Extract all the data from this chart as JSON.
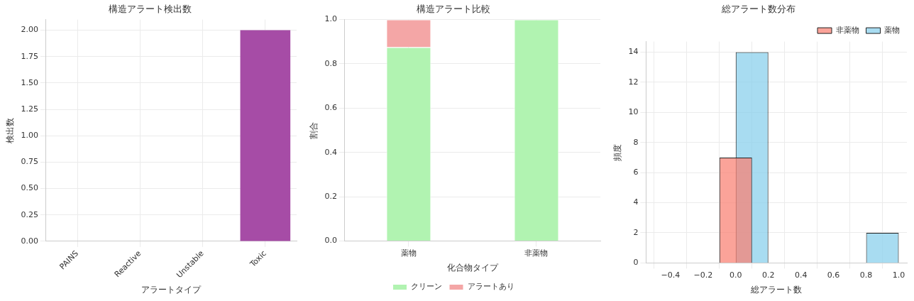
{
  "chart_data": [
    {
      "type": "bar",
      "title": "構造アラート検出数",
      "xlabel": "アラートタイプ",
      "ylabel": "検出数",
      "categories": [
        "PAINS",
        "Reactive",
        "Unstable",
        "Toxic"
      ],
      "values": [
        0,
        0,
        0,
        2
      ],
      "color": "#a64ca6",
      "ylim": [
        0,
        2.1
      ],
      "yticks": [
        {
          "value": 0,
          "label": "0.00"
        },
        {
          "value": 0.25,
          "label": "0.25"
        },
        {
          "value": 0.5,
          "label": "0.50"
        },
        {
          "value": 0.75,
          "label": "0.75"
        },
        {
          "value": 1,
          "label": "1.00"
        },
        {
          "value": 1.25,
          "label": "1.25"
        },
        {
          "value": 1.5,
          "label": "1.50"
        },
        {
          "value": 1.75,
          "label": "1.75"
        },
        {
          "value": 2,
          "label": "2.00"
        }
      ],
      "grid": true
    },
    {
      "type": "bar",
      "title": "構造アラート比較",
      "xlabel": "化合物タイプ",
      "ylabel": "割合",
      "categories": [
        "薬物",
        "非薬物"
      ],
      "stacked": true,
      "series": [
        {
          "name": "クリーン",
          "color": "#b1f3b1",
          "values": [
            0.875,
            1.0
          ]
        },
        {
          "name": "アラートあり",
          "color": "#f4a6a6",
          "values": [
            0.125,
            0
          ]
        }
      ],
      "ylim": [
        0,
        1
      ],
      "yticks": [
        {
          "value": 0,
          "label": "0.0"
        },
        {
          "value": 0.2,
          "label": "0.2"
        },
        {
          "value": 0.4,
          "label": "0.4"
        },
        {
          "value": 0.6,
          "label": "0.6"
        },
        {
          "value": 0.8,
          "label": "0.8"
        },
        {
          "value": 1,
          "label": "1.0"
        }
      ],
      "grid": true,
      "legend": "bottom"
    },
    {
      "type": "bar",
      "title": "総アラート数分布",
      "xlabel": "総アラート数",
      "ylabel": "頻度",
      "series": [
        {
          "name": "薬物",
          "color": "#87ceeb",
          "x": [
            0.1,
            0.9
          ],
          "values": [
            14,
            2
          ]
        },
        {
          "name": "非薬物",
          "color": "#fa8072",
          "x": [
            0
          ],
          "values": [
            7
          ]
        }
      ],
      "xlim": [
        -0.55,
        1.05
      ],
      "xticks": [
        {
          "value": -0.4,
          "label": "−0.4"
        },
        {
          "value": -0.2,
          "label": "−0.2"
        },
        {
          "value": 0,
          "label": "0.0"
        },
        {
          "value": 0.2,
          "label": "0.2"
        },
        {
          "value": 0.4,
          "label": "0.4"
        },
        {
          "value": 0.6,
          "label": "0.6"
        },
        {
          "value": 0.8,
          "label": "0.8"
        },
        {
          "value": 1,
          "label": "1.0"
        }
      ],
      "ylim": [
        0,
        14.7
      ],
      "yticks": [
        0,
        2,
        4,
        6,
        8,
        10,
        12,
        14
      ],
      "grid": true,
      "legend": "top right"
    }
  ]
}
